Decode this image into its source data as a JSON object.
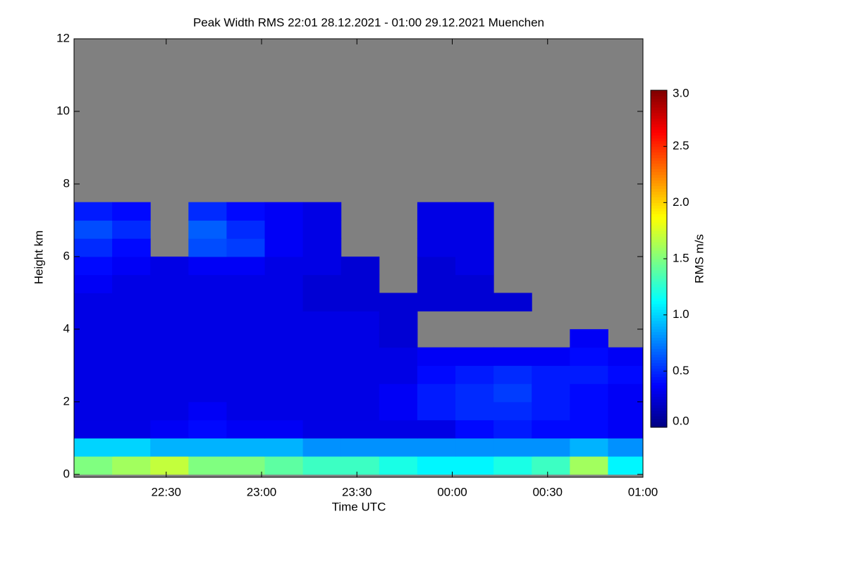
{
  "chart_data": {
    "type": "heatmap",
    "title": "Peak Width RMS   22:01 28.12.2021 - 01:00 29.12.2021 Muenchen",
    "x_label": "Time UTC",
    "y_label": "Height km",
    "colorbar_label": "RMS m/s",
    "x_edges": [
      "22:01",
      "22:13",
      "22:25",
      "22:37",
      "22:49",
      "23:01",
      "23:13",
      "23:25",
      "23:37",
      "23:49",
      "00:01",
      "00:13",
      "00:25",
      "00:37",
      "00:49",
      "01:00"
    ],
    "y_edges": [
      0,
      0.5,
      1,
      1.5,
      2,
      2.5,
      3,
      3.5,
      4,
      4.5,
      5,
      5.5,
      6,
      6.5,
      7,
      7.5,
      8,
      8.5,
      9,
      9.5,
      10,
      10.5,
      11,
      11.5,
      12
    ],
    "values": [
      [
        1.5,
        1.6,
        1.7,
        1.5,
        1.5,
        1.4,
        1.3,
        1.3,
        1.2,
        1.1,
        1.1,
        1.2,
        1.3,
        1.6,
        1.1
      ],
      [
        1.0,
        1.0,
        0.9,
        0.9,
        0.9,
        0.9,
        0.8,
        0.8,
        0.8,
        0.8,
        0.8,
        0.8,
        0.8,
        0.9,
        0.8
      ],
      [
        0.3,
        0.3,
        0.35,
        0.4,
        0.35,
        0.35,
        0.3,
        0.3,
        0.3,
        0.3,
        0.4,
        0.45,
        0.4,
        0.4,
        0.35
      ],
      [
        0.3,
        0.3,
        0.3,
        0.35,
        0.3,
        0.3,
        0.3,
        0.3,
        0.35,
        0.45,
        0.5,
        0.5,
        0.45,
        0.4,
        0.35
      ],
      [
        0.3,
        0.3,
        0.3,
        0.3,
        0.3,
        0.3,
        0.3,
        0.3,
        0.35,
        0.45,
        0.5,
        0.55,
        0.45,
        0.4,
        0.35
      ],
      [
        0.3,
        0.3,
        0.3,
        0.3,
        0.3,
        0.3,
        0.3,
        0.3,
        0.3,
        0.4,
        0.45,
        0.5,
        0.45,
        0.45,
        0.4
      ],
      [
        0.3,
        0.3,
        0.3,
        0.3,
        0.3,
        0.3,
        0.3,
        0.3,
        0.3,
        0.35,
        0.35,
        0.35,
        0.35,
        0.4,
        0.35
      ],
      [
        0.3,
        0.3,
        0.3,
        0.3,
        0.3,
        0.3,
        0.3,
        0.3,
        0.25,
        null,
        null,
        null,
        null,
        0.35,
        null
      ],
      [
        0.3,
        0.3,
        0.3,
        0.3,
        0.3,
        0.3,
        0.3,
        0.3,
        0.25,
        null,
        null,
        null,
        null,
        null,
        null
      ],
      [
        0.3,
        0.3,
        0.3,
        0.3,
        0.3,
        0.3,
        0.25,
        0.25,
        0.25,
        0.25,
        0.25,
        0.25,
        null,
        null,
        null
      ],
      [
        0.35,
        0.3,
        0.3,
        0.3,
        0.3,
        0.3,
        0.25,
        0.25,
        null,
        0.25,
        0.25,
        null,
        null,
        null,
        null
      ],
      [
        0.4,
        0.35,
        0.3,
        0.35,
        0.35,
        0.3,
        0.3,
        0.25,
        null,
        0.25,
        0.3,
        null,
        null,
        null,
        null
      ],
      [
        0.5,
        0.4,
        null,
        0.6,
        0.55,
        0.35,
        0.3,
        null,
        null,
        0.3,
        0.3,
        null,
        null,
        null,
        null
      ],
      [
        0.6,
        0.5,
        null,
        0.65,
        0.5,
        0.35,
        0.3,
        null,
        null,
        0.3,
        0.3,
        null,
        null,
        null,
        null
      ],
      [
        0.45,
        0.4,
        null,
        0.5,
        0.4,
        0.35,
        0.3,
        null,
        null,
        0.3,
        0.3,
        null,
        null,
        null,
        null
      ],
      [
        null,
        null,
        null,
        null,
        null,
        null,
        null,
        null,
        null,
        null,
        null,
        null,
        null,
        null,
        null
      ],
      [
        null,
        null,
        null,
        null,
        null,
        null,
        null,
        null,
        null,
        null,
        null,
        null,
        null,
        null,
        null
      ],
      [
        null,
        null,
        null,
        null,
        null,
        null,
        null,
        null,
        null,
        null,
        null,
        null,
        null,
        null,
        null
      ],
      [
        null,
        null,
        null,
        null,
        null,
        null,
        null,
        null,
        null,
        null,
        null,
        null,
        null,
        null,
        null
      ],
      [
        null,
        null,
        null,
        null,
        null,
        null,
        null,
        null,
        null,
        null,
        null,
        null,
        null,
        null,
        null
      ],
      [
        null,
        null,
        null,
        null,
        null,
        null,
        null,
        null,
        null,
        null,
        null,
        null,
        null,
        null,
        null
      ],
      [
        null,
        null,
        null,
        null,
        null,
        null,
        null,
        null,
        null,
        null,
        null,
        null,
        null,
        null,
        null
      ],
      [
        null,
        null,
        null,
        null,
        null,
        null,
        null,
        null,
        null,
        null,
        null,
        null,
        null,
        null,
        null
      ],
      [
        null,
        null,
        null,
        null,
        null,
        null,
        null,
        null,
        null,
        null,
        null,
        null,
        null,
        null,
        null
      ]
    ],
    "xlim": [
      "22:01",
      "01:00"
    ],
    "xticks": [
      "22:30",
      "23:00",
      "23:30",
      "00:00",
      "00:30",
      "01:00"
    ],
    "ylim": [
      -0.08,
      12
    ],
    "yticks": [
      0,
      2,
      4,
      6,
      8,
      10,
      12
    ],
    "clim": [
      0,
      3
    ],
    "cticks": [
      {
        "value": 0,
        "label": "0.0"
      },
      {
        "value": 0.5,
        "label": "0.5"
      },
      {
        "value": 1,
        "label": "1.0"
      },
      {
        "value": 1.5,
        "label": "1.5"
      },
      {
        "value": 2,
        "label": "2.0"
      },
      {
        "value": 2.5,
        "label": "2.5"
      },
      {
        "value": 3,
        "label": "3.0"
      }
    ],
    "colormap": "jet",
    "missing_color": "#808080"
  }
}
